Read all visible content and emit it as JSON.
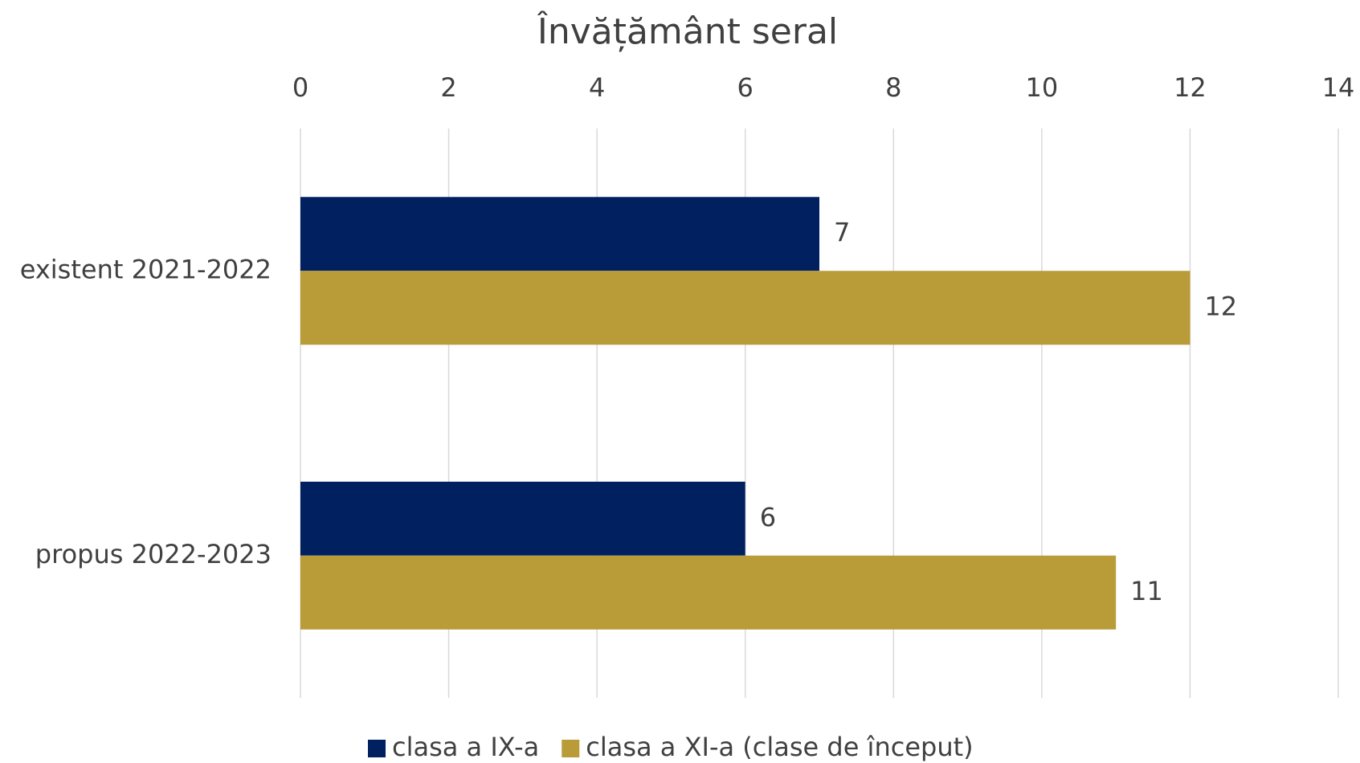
{
  "chart_data": {
    "type": "bar",
    "orientation": "horizontal",
    "title": "Învățământ seral",
    "categories": [
      "existent 2021-2022",
      "propus 2022-2023"
    ],
    "series": [
      {
        "name": "clasa a IX-a",
        "color": "#002060",
        "values": [
          7,
          6
        ]
      },
      {
        "name": "clasa a XI-a (clase de început)",
        "color": "#b99b38",
        "values": [
          12,
          11
        ]
      }
    ],
    "xlim": [
      0,
      14
    ],
    "xticks": [
      0,
      2,
      4,
      6,
      8,
      10,
      12,
      14
    ],
    "grid": true,
    "legend": "bottom"
  }
}
